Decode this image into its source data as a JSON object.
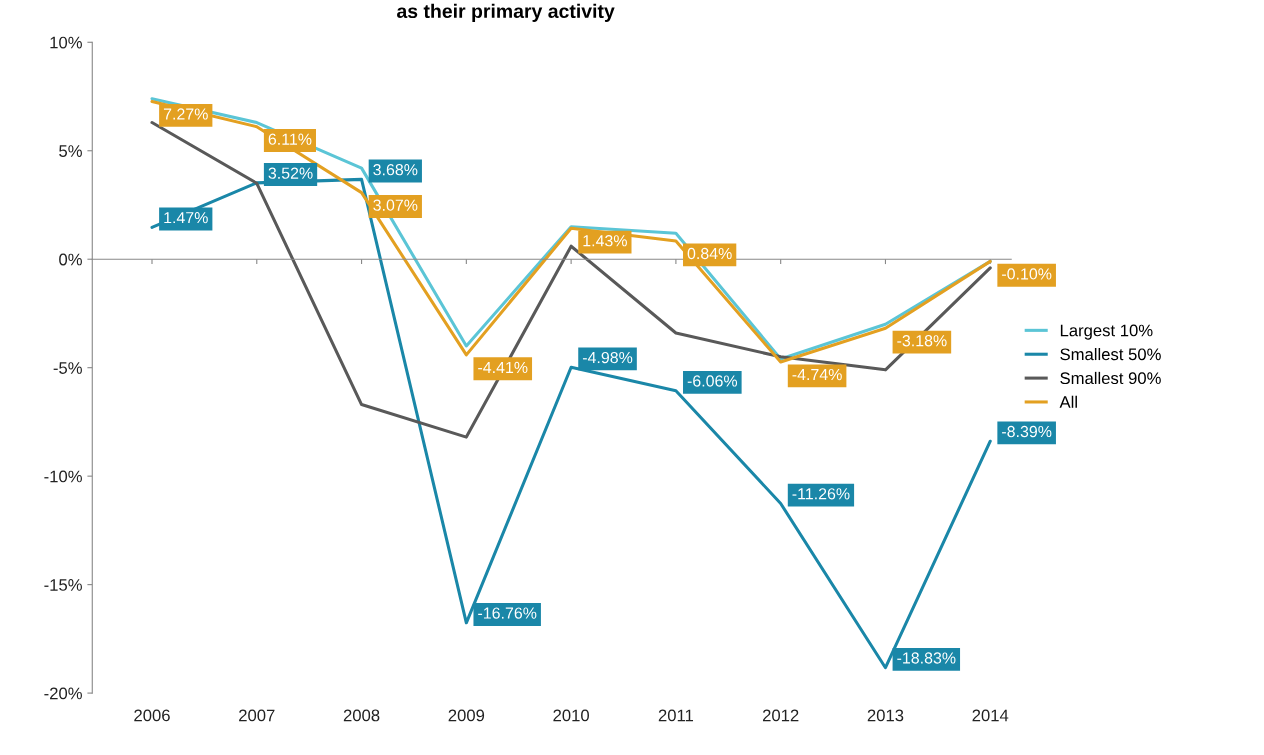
{
  "chart_data": {
    "type": "line",
    "title": "as their primary activity",
    "x": [
      2006,
      2007,
      2008,
      2009,
      2010,
      2011,
      2012,
      2013,
      2014
    ],
    "xlim": [
      2005.43,
      2014.2
    ],
    "xticks": [
      2006,
      2007,
      2008,
      2009,
      2010,
      2011,
      2012,
      2013,
      2014
    ],
    "ylim": [
      -20,
      10
    ],
    "yticks": [
      {
        "value": -20,
        "label": "-20%"
      },
      {
        "value": -15,
        "label": "-15%"
      },
      {
        "value": -10,
        "label": "-10%"
      },
      {
        "value": -5,
        "label": "-5%"
      },
      {
        "value": 0,
        "label": "0%"
      },
      {
        "value": 5,
        "label": "5%"
      },
      {
        "value": 10,
        "label": "10%"
      }
    ],
    "legend": "right",
    "marker": "none",
    "line_style": "solid",
    "series": [
      {
        "name": "Largest 10%",
        "color": "#5bc5d6",
        "values": [
          7.4,
          6.3,
          4.2,
          -4.0,
          1.5,
          1.2,
          -4.6,
          -3.0,
          -0.1
        ]
      },
      {
        "name": "Smallest 50%",
        "color": "#1a87a8",
        "values": [
          1.47,
          3.52,
          3.68,
          -16.76,
          -4.98,
          -6.06,
          -11.26,
          -18.83,
          -8.39
        ],
        "value_labels": [
          "1.47%",
          "3.52%",
          "3.68%",
          "-16.76%",
          "-4.98%",
          "-6.06%",
          "-11.26%",
          "-18.83%",
          "-8.39%"
        ]
      },
      {
        "name": "Smallest 90%",
        "color": "#595959",
        "values": [
          6.3,
          3.5,
          -6.7,
          -8.2,
          0.6,
          -3.4,
          -4.5,
          -5.1,
          -0.4
        ]
      },
      {
        "name": "All",
        "color": "#e3a021",
        "values": [
          7.27,
          6.11,
          3.07,
          -4.41,
          1.43,
          0.84,
          -4.74,
          -3.18,
          -0.1
        ],
        "value_labels": [
          "7.27%",
          "6.11%",
          "3.07%",
          "-4.41%",
          "1.43%",
          "0.84%",
          "-4.74%",
          "-3.18%",
          "-0.10%"
        ]
      }
    ]
  }
}
